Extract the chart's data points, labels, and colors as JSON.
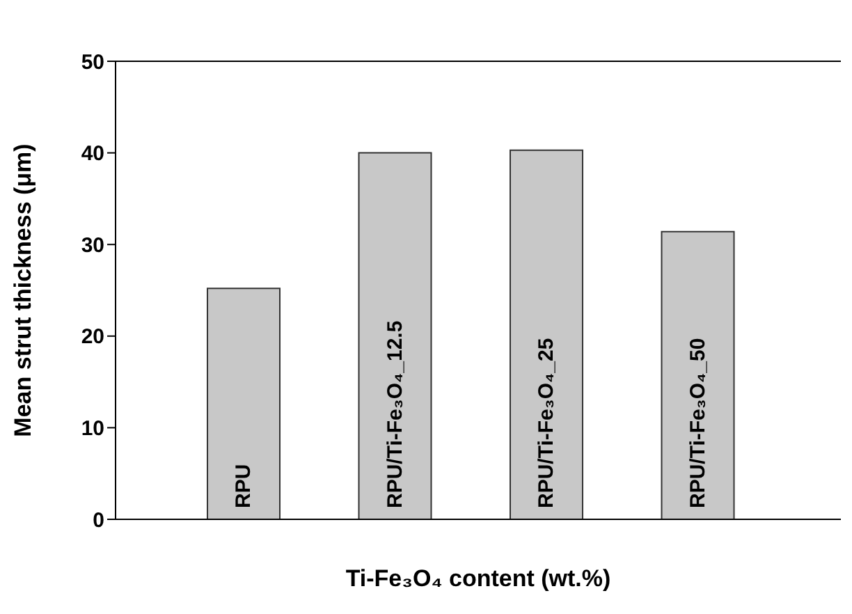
{
  "chart_data": {
    "type": "bar",
    "categories": [
      "RPU",
      "RPU/Ti-Fe₃O₄_12.5",
      "RPU/Ti-Fe₃O₄_25",
      "RPU/Ti-Fe₃O₄_50"
    ],
    "values": [
      25.2,
      40.0,
      40.3,
      31.4
    ],
    "color": "#c8c8c8",
    "xlabel": "Ti-Fe₃O₄ content (wt.%)",
    "ylabel": "Mean strut thickness (μm)",
    "ylim": [
      0,
      50
    ],
    "yticks": [
      0,
      10,
      20,
      30,
      40,
      50
    ],
    "grid": false
  }
}
